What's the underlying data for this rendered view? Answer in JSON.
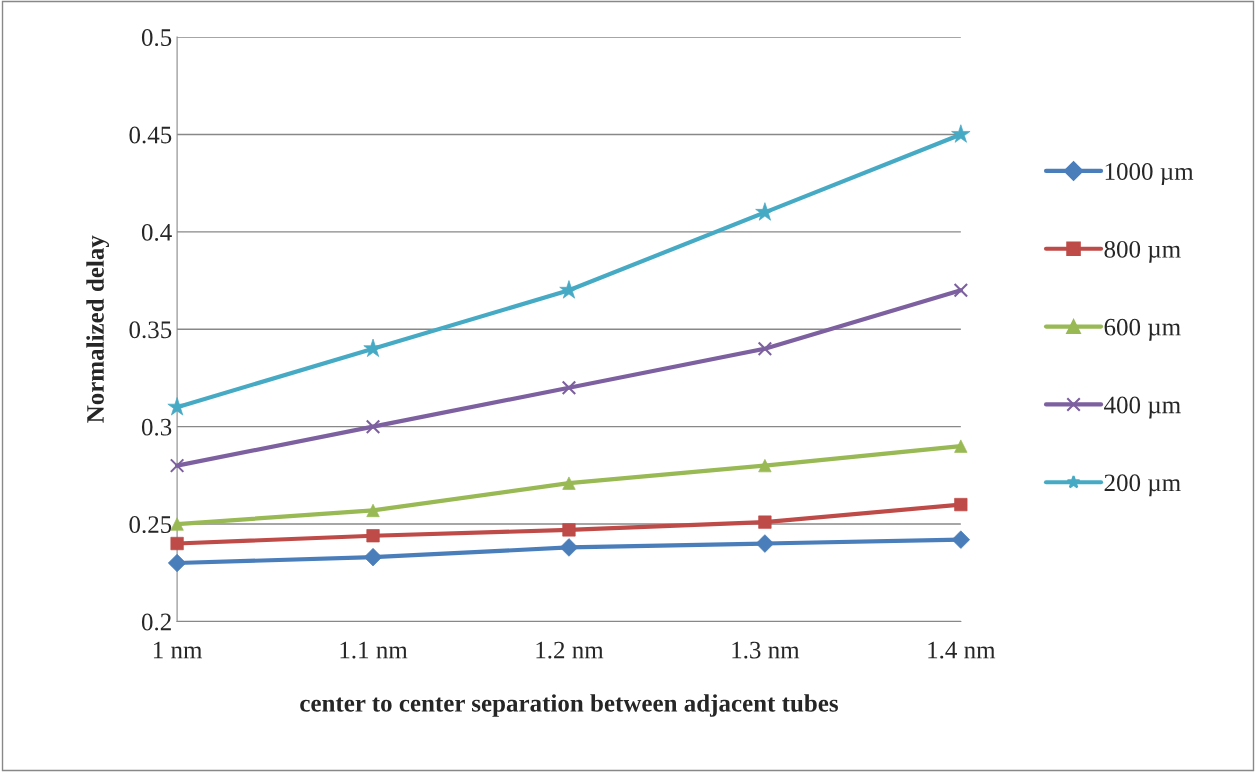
{
  "chart_data": {
    "type": "line",
    "xlabel": "center to center separation between adjacent tubes",
    "ylabel": "Normalized delay",
    "categories": [
      "1 nm",
      "1.1 nm",
      "1.2 nm",
      "1.3 nm",
      "1.4 nm"
    ],
    "series": [
      {
        "name": "1000 µm",
        "color": "#4a7ebb",
        "marker": "diamond",
        "values": [
          0.23,
          0.233,
          0.238,
          0.24,
          0.242
        ]
      },
      {
        "name": "800 µm",
        "color": "#be4b48",
        "marker": "square",
        "values": [
          0.24,
          0.244,
          0.247,
          0.251,
          0.26
        ]
      },
      {
        "name": "600 µm",
        "color": "#98b954",
        "marker": "triangle",
        "values": [
          0.25,
          0.257,
          0.271,
          0.28,
          0.29
        ]
      },
      {
        "name": "400 µm",
        "color": "#7d60a0",
        "marker": "cross",
        "values": [
          0.28,
          0.3,
          0.32,
          0.34,
          0.37
        ]
      },
      {
        "name": "200 µm",
        "color": "#46aac5",
        "marker": "star",
        "values": [
          0.31,
          0.34,
          0.37,
          0.41,
          0.45
        ]
      }
    ],
    "ylim": [
      0.2,
      0.5
    ],
    "yticks": [
      0.2,
      0.25,
      0.3,
      0.35,
      0.4,
      0.45,
      0.5
    ],
    "grid": "y",
    "legend": "right",
    "line_style": "solid"
  }
}
